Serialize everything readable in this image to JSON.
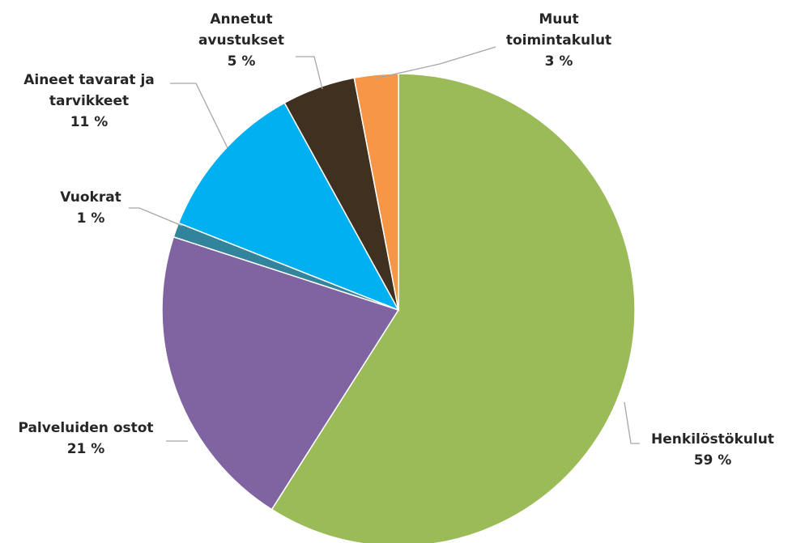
{
  "chart_data": {
    "type": "pie",
    "title": "",
    "slices": [
      {
        "label": [
          "Henkilöstökulut"
        ],
        "percent_label": "59 %",
        "value": 59,
        "color": "#9bbb59"
      },
      {
        "label": [
          "Palveluiden ostot"
        ],
        "percent_label": "21 %",
        "value": 21,
        "color": "#8064a2"
      },
      {
        "label": [
          "Vuokrat"
        ],
        "percent_label": "1 %",
        "value": 1,
        "color": "#31849b"
      },
      {
        "label": [
          "Aineet tavarat ja",
          "tarvikkeet"
        ],
        "percent_label": "11 %",
        "value": 11,
        "color": "#00b0f0"
      },
      {
        "label": [
          "Annetut",
          "avustukset"
        ],
        "percent_label": "5 %",
        "value": 5,
        "color": "#403020"
      },
      {
        "label": [
          "Muut",
          "toimintakulut"
        ],
        "percent_label": "3 %",
        "value": 3,
        "color": "#f79646"
      }
    ],
    "start_angle": "top",
    "direction": "clockwise"
  }
}
